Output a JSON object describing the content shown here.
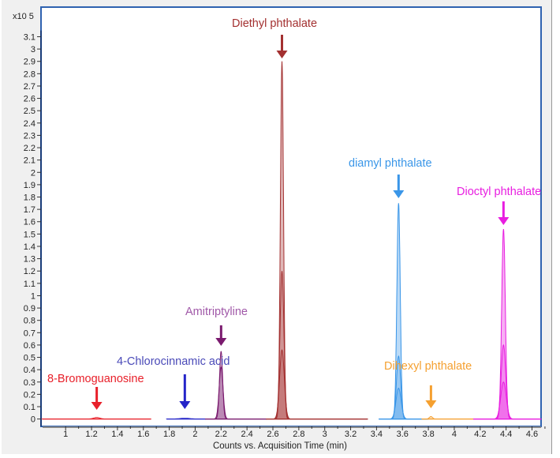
{
  "chart_data": {
    "type": "line",
    "title": "",
    "xlabel": "Counts vs. Acquisition Time (min)",
    "ylabel": "",
    "y_multiplier": "x10 5",
    "panel_number": "1",
    "xlim": [
      0.81,
      4.67
    ],
    "ylim": [
      -0.06,
      3.34
    ],
    "xticks": [
      1,
      1.2,
      1.4,
      1.6,
      1.8,
      2,
      2.2,
      2.4,
      2.6,
      2.8,
      3,
      3.2,
      3.4,
      3.6,
      3.8,
      4,
      4.2,
      4.4,
      4.6
    ],
    "xtick_labels": [
      "1",
      "1.2",
      "1.4",
      "1.6",
      "1.8",
      "2",
      "2.2",
      "2.4",
      "2.6",
      "2.8",
      "3",
      "3.2",
      "3.4",
      "3.6",
      "3.8",
      "4",
      "4.2",
      "4.4",
      "4.6"
    ],
    "yticks": [
      0,
      0.1,
      0.2,
      0.3,
      0.4,
      0.5,
      0.6,
      0.7,
      0.8,
      0.9,
      1,
      1.1,
      1.2,
      1.3,
      1.4,
      1.5,
      1.6,
      1.7,
      1.8,
      1.9,
      2,
      2.1,
      2.2,
      2.3,
      2.4,
      2.5,
      2.6,
      2.7,
      2.8,
      2.9,
      3,
      3.1
    ],
    "ytick_labels": [
      "0",
      "0.1",
      "0.2",
      "0.3",
      "0.4",
      "0.5",
      "0.6",
      "0.7",
      "0.8",
      "0.9",
      "1",
      "1.1",
      "1.2",
      "1.3",
      "1.4",
      "1.5",
      "1.6",
      "1.7",
      "1.8",
      "1.9",
      "2",
      "2.1",
      "2.2",
      "2.3",
      "2.4",
      "2.5",
      "2.6",
      "2.7",
      "2.8",
      "2.9",
      "3",
      "3.1"
    ],
    "grid": false,
    "series": [
      {
        "name": "8-Bromoguanosine",
        "color": "#e8202a",
        "label_color": "#e8202a",
        "rt": 1.24,
        "peaks": [
          0.012
        ],
        "range": [
          0.82,
          1.66
        ],
        "width": 0.025
      },
      {
        "name": "4-Chlorocinnamic acid",
        "color": "#2424c8",
        "label_color": "#4a4ab8",
        "rt": 1.92,
        "peaks": [
          0.006
        ],
        "range": [
          1.78,
          2.08
        ],
        "width": 0.04
      },
      {
        "name": "Amitriptyline",
        "color": "#7a1a6e",
        "label_color": "#a058a8",
        "rt": 2.2,
        "peaks": [
          0.55,
          0.42
        ],
        "range": [
          2.08,
          2.55
        ],
        "width": 0.012
      },
      {
        "name": "Diethyl phthalate",
        "color": "#a33030",
        "label_color": "#a33030",
        "rt": 2.67,
        "peaks": [
          2.9,
          1.2,
          0.56
        ],
        "range": [
          2.55,
          3.33
        ],
        "width": 0.012
      },
      {
        "name": "diamyl phthalate",
        "color": "#3a96e8",
        "label_color": "#3a96e8",
        "rt": 3.57,
        "peaks": [
          1.75,
          0.51,
          0.25
        ],
        "range": [
          3.42,
          3.8
        ],
        "width": 0.013
      },
      {
        "name": "Dihexyl phthalate",
        "color": "#f5a030",
        "label_color": "#f5a030",
        "rt": 3.82,
        "peaks": [
          0.02
        ],
        "range": [
          3.75,
          4.15
        ],
        "width": 0.012
      },
      {
        "name": "Dioctyl phthalate",
        "color": "#e81ee0",
        "label_color": "#e81ee0",
        "rt": 4.38,
        "peaks": [
          1.54,
          0.6,
          0.3
        ],
        "range": [
          4.15,
          4.67
        ],
        "width": 0.014
      }
    ]
  }
}
